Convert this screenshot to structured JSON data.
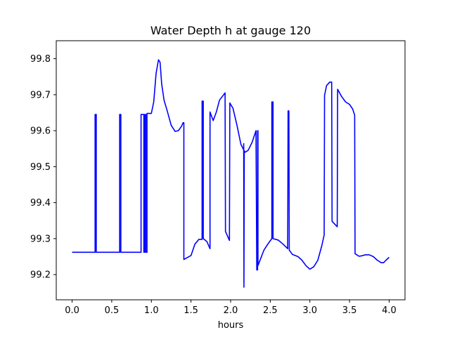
{
  "chart_data": {
    "type": "line",
    "title": "Water Depth h at gauge 120",
    "xlabel": "hours",
    "ylabel": "",
    "xlim": [
      -0.2,
      4.2
    ],
    "ylim": [
      99.13,
      99.85
    ],
    "xticks": [
      0.0,
      0.5,
      1.0,
      1.5,
      2.0,
      2.5,
      3.0,
      3.5,
      4.0
    ],
    "xtick_labels": [
      "0.0",
      "0.5",
      "1.0",
      "1.5",
      "2.0",
      "2.5",
      "3.0",
      "3.5",
      "4.0"
    ],
    "yticks": [
      99.2,
      99.3,
      99.4,
      99.5,
      99.6,
      99.7,
      99.8
    ],
    "ytick_labels": [
      "99.2",
      "99.3",
      "99.4",
      "99.5",
      "99.6",
      "99.7",
      "99.8"
    ],
    "grid": false,
    "legend": "none",
    "series": [
      {
        "color": "#0000ff",
        "points": [
          [
            0.0,
            99.262
          ],
          [
            0.29,
            99.262
          ],
          [
            0.29,
            99.645
          ],
          [
            0.305,
            99.645
          ],
          [
            0.305,
            99.262
          ],
          [
            0.6,
            99.262
          ],
          [
            0.6,
            99.645
          ],
          [
            0.615,
            99.645
          ],
          [
            0.615,
            99.262
          ],
          [
            0.87,
            99.262
          ],
          [
            0.87,
            99.645
          ],
          [
            0.905,
            99.645
          ],
          [
            0.905,
            99.262
          ],
          [
            0.915,
            99.262
          ],
          [
            0.915,
            99.645
          ],
          [
            0.93,
            99.645
          ],
          [
            0.93,
            99.262
          ],
          [
            0.945,
            99.262
          ],
          [
            0.945,
            99.648
          ],
          [
            1.0,
            99.648
          ],
          [
            1.03,
            99.68
          ],
          [
            1.06,
            99.76
          ],
          [
            1.09,
            99.797
          ],
          [
            1.11,
            99.79
          ],
          [
            1.13,
            99.73
          ],
          [
            1.16,
            99.685
          ],
          [
            1.2,
            99.655
          ],
          [
            1.25,
            99.615
          ],
          [
            1.3,
            99.598
          ],
          [
            1.34,
            99.6
          ],
          [
            1.38,
            99.612
          ],
          [
            1.4,
            99.622
          ],
          [
            1.41,
            99.622
          ],
          [
            1.41,
            99.242
          ],
          [
            1.45,
            99.247
          ],
          [
            1.5,
            99.253
          ],
          [
            1.55,
            99.285
          ],
          [
            1.6,
            99.298
          ],
          [
            1.64,
            99.298
          ],
          [
            1.64,
            99.682
          ],
          [
            1.655,
            99.682
          ],
          [
            1.655,
            99.3
          ],
          [
            1.7,
            99.292
          ],
          [
            1.74,
            99.272
          ],
          [
            1.74,
            99.652
          ],
          [
            1.78,
            99.628
          ],
          [
            1.82,
            99.652
          ],
          [
            1.86,
            99.685
          ],
          [
            1.93,
            99.705
          ],
          [
            1.935,
            99.32
          ],
          [
            1.985,
            99.295
          ],
          [
            1.99,
            99.677
          ],
          [
            2.03,
            99.662
          ],
          [
            2.08,
            99.615
          ],
          [
            2.13,
            99.562
          ],
          [
            2.18,
            99.54
          ],
          [
            2.22,
            99.545
          ],
          [
            2.27,
            99.567
          ],
          [
            2.32,
            99.6
          ],
          [
            2.33,
            99.213
          ],
          [
            2.34,
            99.213
          ],
          [
            2.34,
            99.6
          ],
          [
            2.345,
            99.6
          ],
          [
            2.345,
            99.225
          ],
          [
            2.38,
            99.245
          ],
          [
            2.42,
            99.268
          ],
          [
            2.47,
            99.285
          ],
          [
            2.52,
            99.3
          ],
          [
            2.52,
            99.68
          ],
          [
            2.535,
            99.68
          ],
          [
            2.535,
            99.3
          ],
          [
            2.6,
            99.296
          ],
          [
            2.66,
            99.285
          ],
          [
            2.72,
            99.272
          ],
          [
            2.725,
            99.655
          ],
          [
            2.735,
            99.655
          ],
          [
            2.74,
            99.268
          ],
          [
            2.78,
            99.256
          ],
          [
            2.85,
            99.25
          ],
          [
            2.9,
            99.24
          ],
          [
            2.95,
            99.225
          ],
          [
            3.0,
            99.215
          ],
          [
            3.05,
            99.222
          ],
          [
            3.1,
            99.24
          ],
          [
            3.15,
            99.28
          ],
          [
            3.18,
            99.31
          ],
          [
            3.185,
            99.698
          ],
          [
            3.21,
            99.725
          ],
          [
            3.25,
            99.735
          ],
          [
            3.275,
            99.735
          ],
          [
            3.28,
            99.348
          ],
          [
            3.345,
            99.333
          ],
          [
            3.35,
            99.715
          ],
          [
            3.4,
            99.695
          ],
          [
            3.45,
            99.68
          ],
          [
            3.5,
            99.673
          ],
          [
            3.54,
            99.66
          ],
          [
            3.565,
            99.643
          ],
          [
            3.57,
            99.258
          ],
          [
            3.62,
            99.251
          ],
          [
            3.65,
            99.252
          ],
          [
            3.7,
            99.255
          ],
          [
            3.75,
            99.255
          ],
          [
            3.8,
            99.25
          ],
          [
            3.85,
            99.24
          ],
          [
            3.9,
            99.233
          ],
          [
            3.93,
            99.233
          ],
          [
            3.96,
            99.24
          ],
          [
            4.0,
            99.248
          ]
        ]
      },
      {
        "color": "#0000ff",
        "points": [
          [
            2.165,
            99.565
          ],
          [
            2.168,
            99.165
          ],
          [
            2.172,
            99.545
          ]
        ]
      }
    ]
  }
}
